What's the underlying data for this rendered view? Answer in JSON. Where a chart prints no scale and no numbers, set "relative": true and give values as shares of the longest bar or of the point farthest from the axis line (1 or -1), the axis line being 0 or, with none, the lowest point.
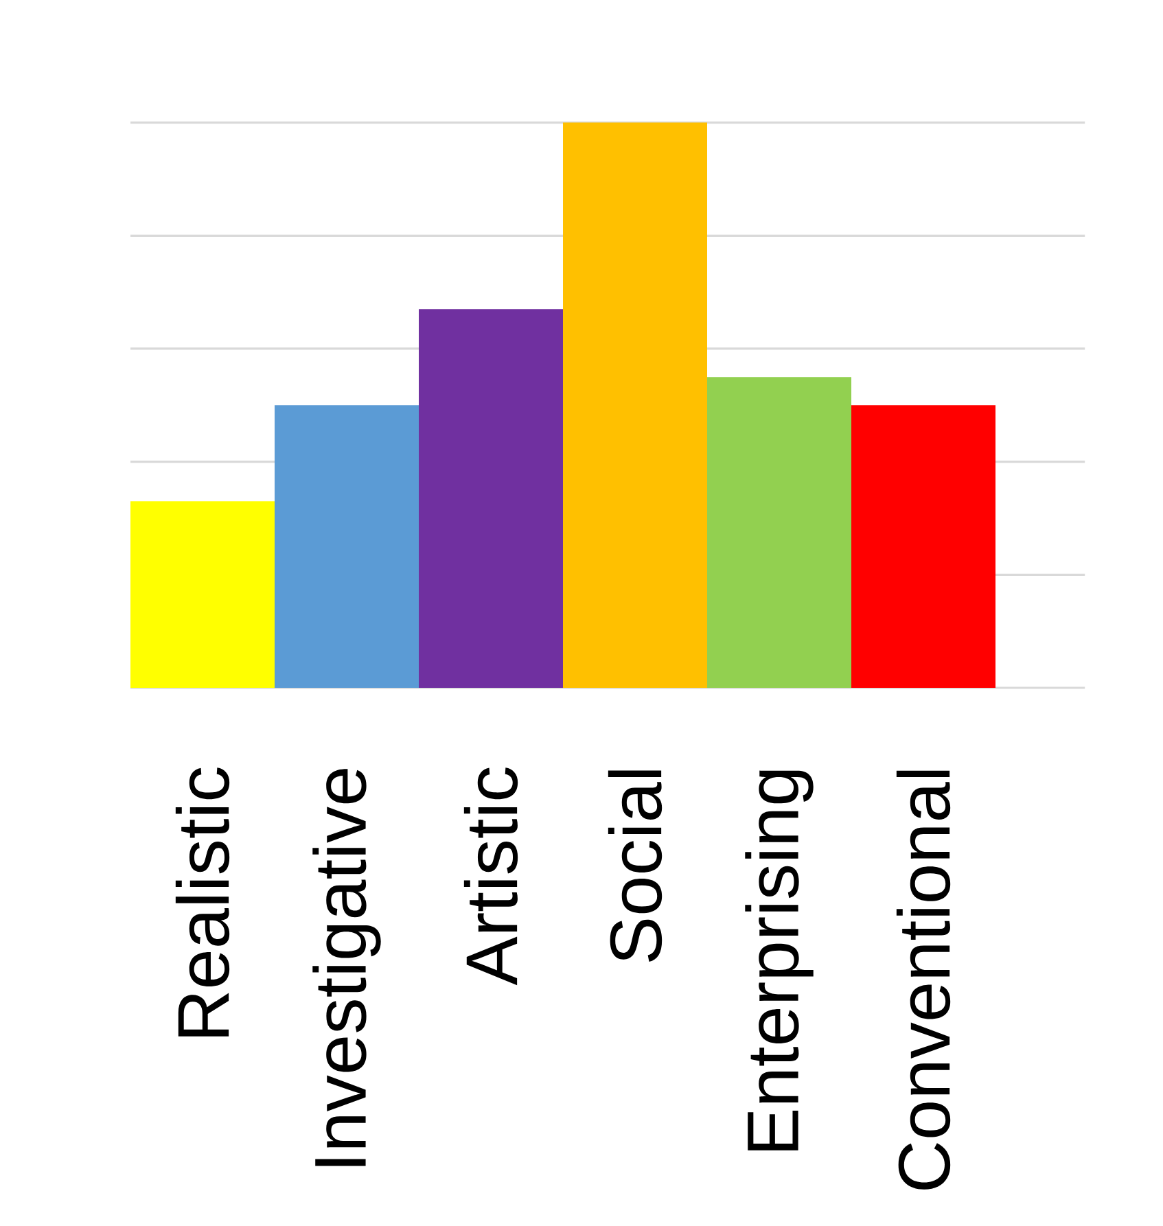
{
  "chart_data": {
    "type": "bar",
    "categories": [
      "Realistic",
      "Investigative",
      "Artistic",
      "Social",
      "Enterprising",
      "Conventional"
    ],
    "values": [
      0.33,
      0.5,
      0.67,
      1,
      0.55,
      0.5
    ],
    "colors": [
      "#ffff00",
      "#5b9bd5",
      "#7030a0",
      "#ffc000",
      "#92d050",
      "#ff0000"
    ],
    "relative": true,
    "grid": "y"
  }
}
